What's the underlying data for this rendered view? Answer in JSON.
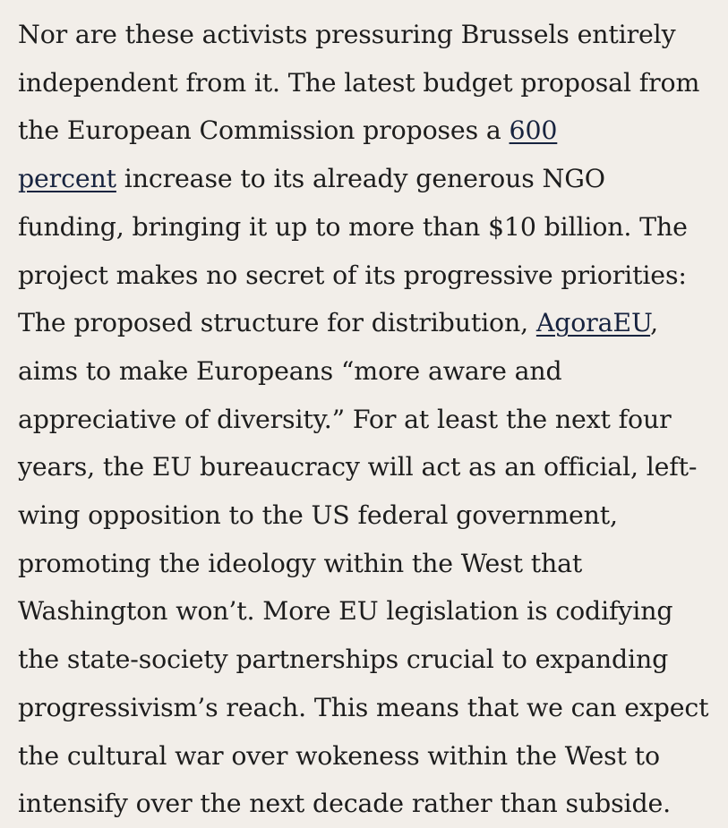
{
  "article": {
    "lines": [
      {
        "text": "Nor are these activists pressuring Brussels entirely"
      },
      {
        "text": "independent from it. The latest budget proposal from"
      },
      {
        "before": "the European Commission proposes a ",
        "link": "600",
        "after": ""
      },
      {
        "before": "",
        "link": "percent",
        "after": " increase to its already generous NGO"
      },
      {
        "text": "funding, bringing it up to more than $10 billion. The"
      },
      {
        "text": "project makes no secret of its progressive priorities:"
      },
      {
        "before": "The proposed structure for distribution, ",
        "link": "AgoraEU",
        "after": ","
      },
      {
        "text": "aims to make Europeans “more aware and"
      },
      {
        "text": "appreciative of diversity.” For at least the next four"
      },
      {
        "text": "years, the EU bureaucracy will act as an official, left-"
      },
      {
        "text": "wing opposition to the US federal government,"
      },
      {
        "text": "promoting the ideology within the West that"
      },
      {
        "text": "Washington won’t. More EU legislation is codifying"
      },
      {
        "text": "the state-society partnerships crucial to expanding"
      },
      {
        "text": "progressivism’s reach. This means that we can expect"
      },
      {
        "text": "the cultural war over wokeness within the West to"
      },
      {
        "text": "intensify over the next decade rather than subside."
      }
    ]
  }
}
